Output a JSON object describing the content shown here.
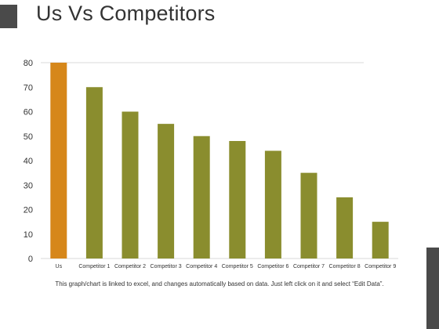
{
  "header": {
    "title": "Us Vs Competitors"
  },
  "footnote": "This graph/chart is linked to excel, and changes automatically based on data. Just left click on it and select “Edit Data”.",
  "colors": {
    "highlight": "#D6871A",
    "bar": "#8A8D2E",
    "grid": "#D9D9D9",
    "text": "#333333",
    "dark": "#4A4A4A"
  },
  "chart_data": {
    "type": "bar",
    "title": "",
    "xlabel": "",
    "ylabel": "",
    "categories": [
      "Us",
      "Competitor 1",
      "Competitor 2",
      "Competitor 3",
      "Competitor 4",
      "Competitor 5",
      "Competitor 6",
      "Competitor 7",
      "Competitor 8",
      "Competitor 9"
    ],
    "values": [
      80,
      70,
      60,
      55,
      50,
      48,
      44,
      35,
      25,
      15
    ],
    "highlight_category": "Us",
    "ylim": [
      0,
      80
    ],
    "yticks": [
      0,
      10,
      20,
      30,
      40,
      50,
      60,
      70,
      80
    ],
    "grid": false,
    "legend": "none"
  }
}
